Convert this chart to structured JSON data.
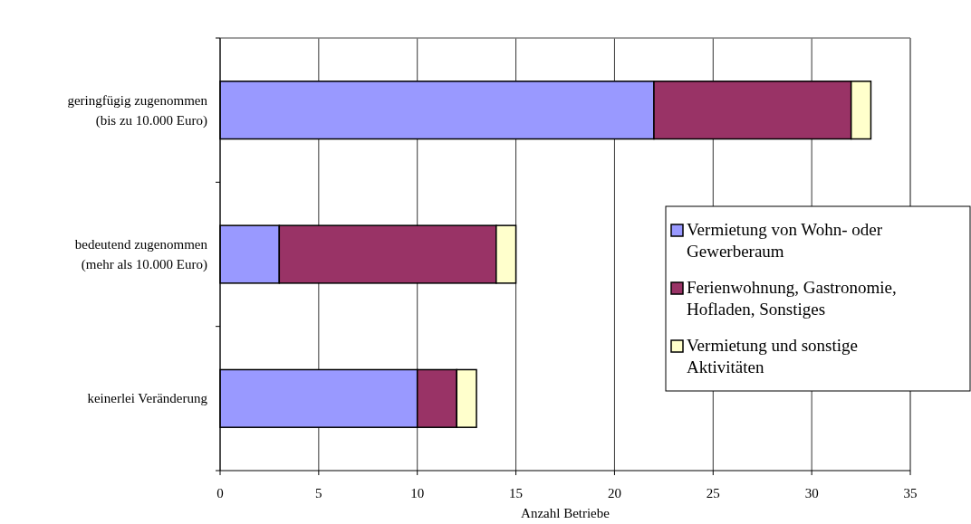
{
  "chart_data": {
    "type": "bar",
    "orientation": "horizontal",
    "stacked": true,
    "categories": [
      "geringfügig zugenommen\n(bis zu 10.000 Euro)",
      "bedeutend zugenommen\n(mehr als 10.000 Euro)",
      "keinerlei Veränderung"
    ],
    "series": [
      {
        "name": "Vermietung von Wohn- oder Gewerberaum",
        "color": "#9999ff",
        "values": [
          22,
          3,
          10
        ]
      },
      {
        "name": "Ferienwohnung, Gastronomie, Hofladen, Sonstiges",
        "color": "#993366",
        "values": [
          10,
          11,
          2
        ]
      },
      {
        "name": "Vermietung und sonstige Aktivitäten",
        "color": "#ffffcc",
        "values": [
          1,
          1,
          1
        ]
      }
    ],
    "xlabel": "Anzahl Betriebe",
    "xlim": [
      0,
      35
    ],
    "xticks": [
      0,
      5,
      10,
      15,
      20,
      25,
      30,
      35
    ],
    "grid": "x",
    "legend": "bottom right"
  }
}
